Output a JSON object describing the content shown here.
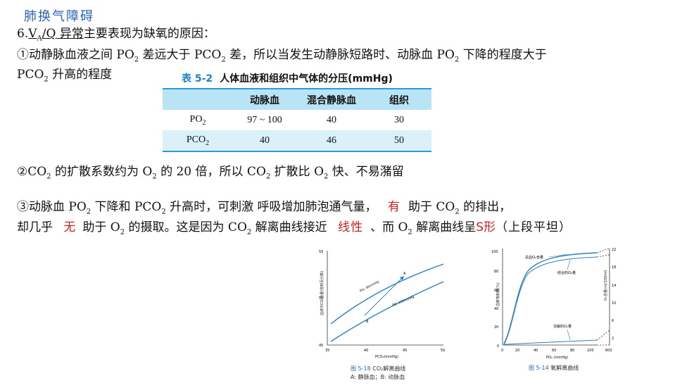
{
  "section_title": "肺换气障碍",
  "heading": {
    "prefix": "6.",
    "v": "V",
    "a_sub": "A",
    "slash": "/",
    "q": "Q",
    "rest_underlined": " 异常",
    "rest": "主要表现为缺氧的原因："
  },
  "point1": {
    "line1_a": "①动静脉血液之间 PO",
    "line1_b": " 差远大于 PCO",
    "line1_c": " 差，所以当发生动静脉短路时、动脉血 PO",
    "line1_d": " 下降的程度大于",
    "line2_a": "PCO",
    "line2_b": " 升高的程度"
  },
  "table": {
    "number": "表 5-2",
    "title": "人体血液和组织中气体的分压(mmHg)",
    "columns": [
      "",
      "动脉血",
      "混合静脉血",
      "组织"
    ],
    "rows": [
      {
        "label": "PO",
        "sub": "2",
        "values": [
          "97 ~ 100",
          "40",
          "30"
        ]
      },
      {
        "label": "PCO",
        "sub": "2",
        "values": [
          "40",
          "46",
          "50"
        ]
      }
    ]
  },
  "point2": {
    "a": "②CO",
    "b": " 的扩散系数约为 O",
    "c": " 的 20 倍，所以 CO",
    "d": " 扩散比 O",
    "e": " 快、不易潴留"
  },
  "point3": {
    "l1_a": "③动脉血 PO",
    "l1_b": " 下降和 PCO",
    "l1_c": " 升高时，可刺激 呼吸增加肺泡通气量，",
    "fill1": "有",
    "l1_d": "助于 CO",
    "l1_e": " 的排出，",
    "l2_a": "却几乎",
    "fill2": "无",
    "l2_b": "助于 O",
    "l2_c": " 的摄取。这是因为 CO",
    "l2_d": " 解离曲线接近",
    "fill3": "线性",
    "l2_e": "、而 O",
    "l2_f": " 解离曲线呈",
    "fill4": "S形",
    "l2_g": "（上段平坦）"
  },
  "sub2": "2",
  "fig1": {
    "caption_num": "图 5-18",
    "caption": "CO₂解离曲线",
    "caption_sub": "A: 静脉血；B: 动脉血",
    "ylabel": "血液中CO₂含量(容积百分数)",
    "xlabel": "PCO₂(mmHg)",
    "label_curve1": "PO₂ 40mmHg",
    "label_curve2": "PO₂ 100mmHg",
    "point_a": "A",
    "point_b": "B",
    "y_ticks": [
      "55",
      "50",
      "45"
    ],
    "x_ticks": [
      "35",
      "40",
      "45",
      "50"
    ],
    "curve_color": "#2b7fc1"
  },
  "fig2": {
    "caption_num": "图 5-14",
    "caption": "氧解离曲线",
    "ylabel_left": "血氧饱和度(%)",
    "ylabel_right": "O₂含量(ml/100ml)",
    "xlabel": "PO₂ (mmHg)",
    "label_total": "总血O₂含量",
    "label_bound": "结合的O₂量",
    "label_dissolved": "溶解的O₂量",
    "y_ticks_left": [
      "100",
      "80",
      "60",
      "40",
      "20",
      "0"
    ],
    "y_ticks_right": [
      "22",
      "18",
      "14",
      "10",
      "6",
      "2"
    ],
    "x_ticks": [
      "0",
      "20",
      "40",
      "60",
      "80",
      "100",
      "600"
    ],
    "curve_color": "#2b7fc1"
  }
}
